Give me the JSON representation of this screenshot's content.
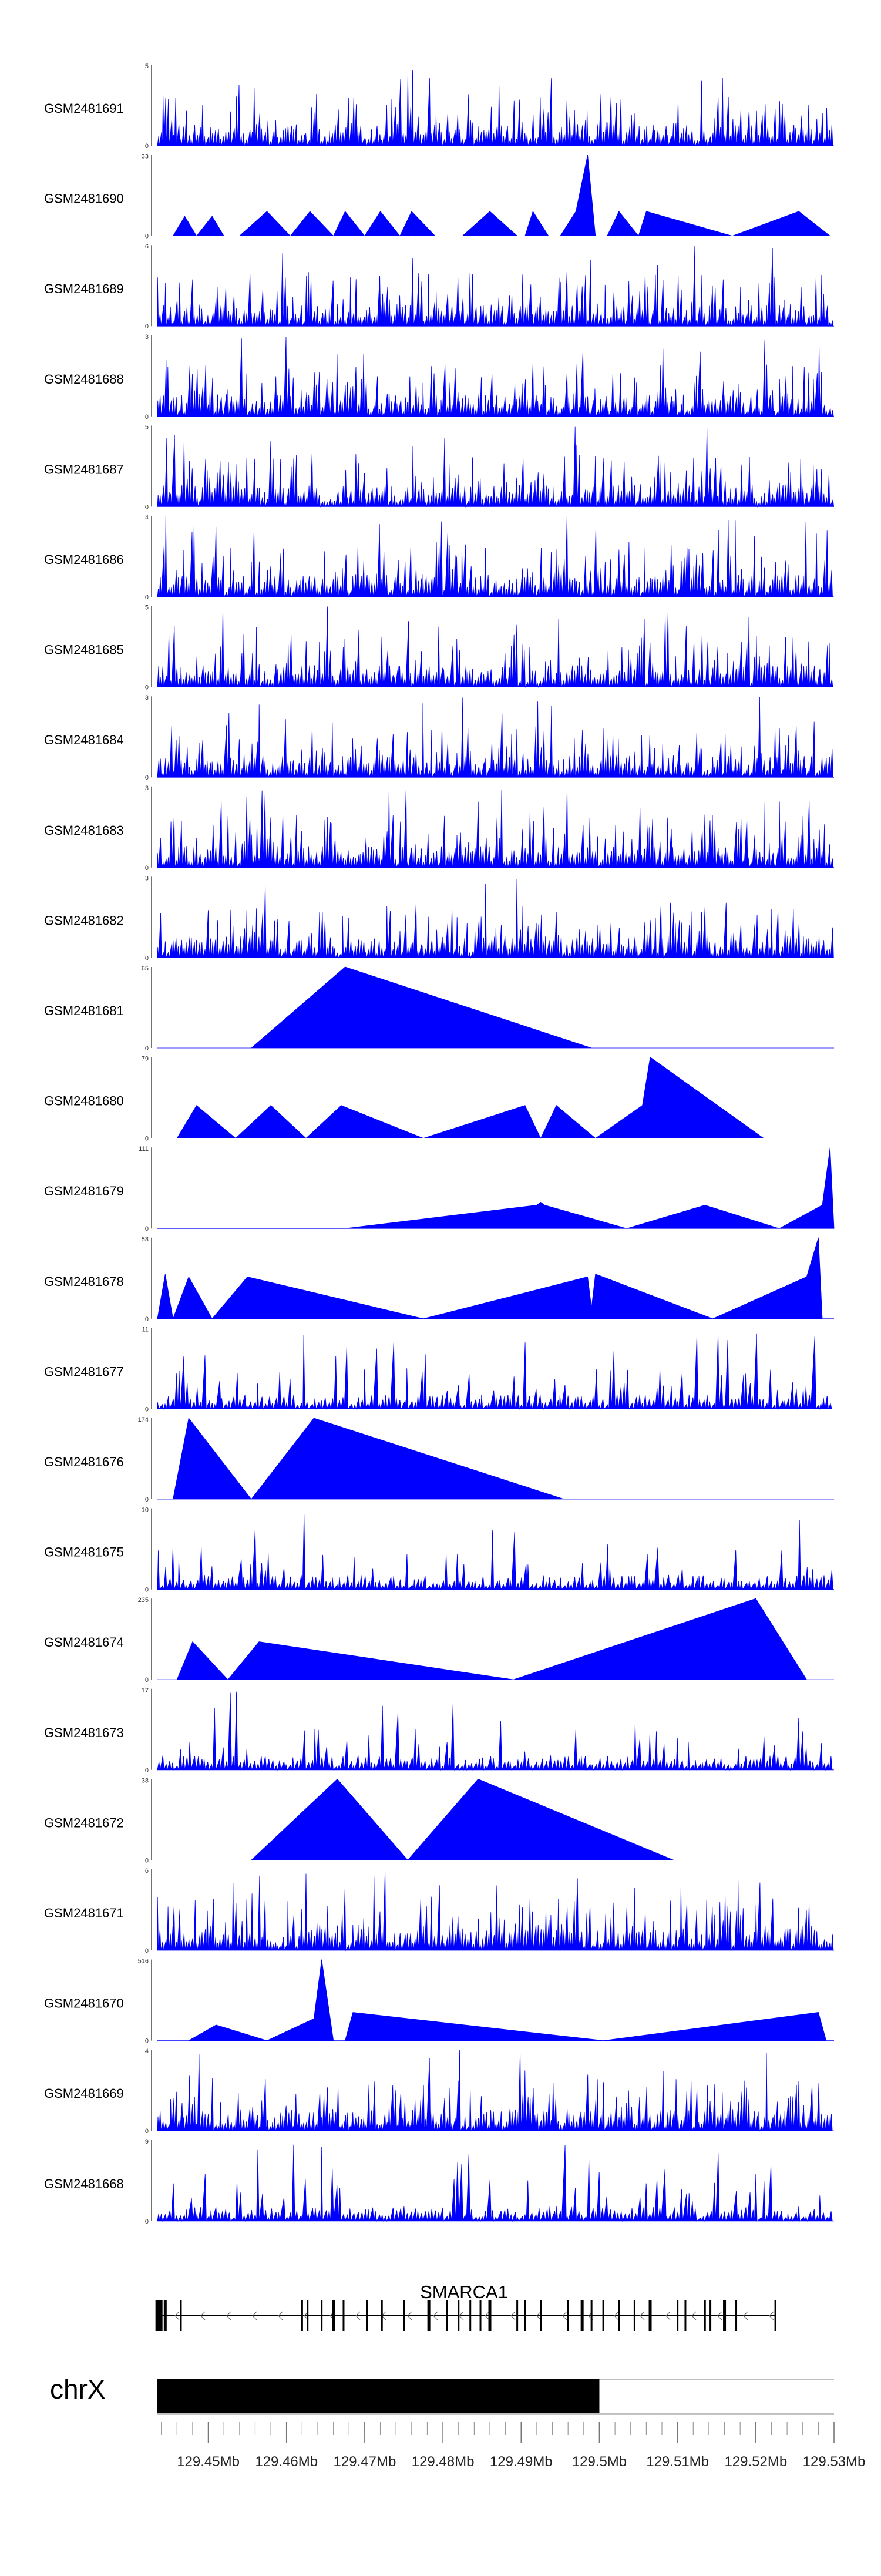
{
  "chart_data": {
    "type": "area",
    "title": "",
    "xlabel": "",
    "xlim": [
      129.4435,
      129.53
    ],
    "x_unit": "Mb",
    "track_fill": "#0000ff",
    "tracks": [
      {
        "name": "GSM2481691",
        "ymax": 5,
        "style": "dense",
        "seed": 91
      },
      {
        "name": "GSM2481690",
        "ymax": 33,
        "style": "peaks",
        "points": [
          [
            129.4435,
            0
          ],
          [
            129.4455,
            0
          ],
          [
            129.447,
            8
          ],
          [
            129.4485,
            0
          ],
          [
            129.4505,
            8
          ],
          [
            129.452,
            0
          ],
          [
            129.454,
            0
          ],
          [
            129.4575,
            10
          ],
          [
            129.4605,
            0
          ],
          [
            129.463,
            10
          ],
          [
            129.466,
            0
          ],
          [
            129.4675,
            10
          ],
          [
            129.47,
            0
          ],
          [
            129.472,
            10
          ],
          [
            129.4745,
            0
          ],
          [
            129.476,
            10
          ],
          [
            129.479,
            0
          ],
          [
            129.4825,
            0
          ],
          [
            129.486,
            10
          ],
          [
            129.4895,
            0
          ],
          [
            129.4905,
            0
          ],
          [
            129.4915,
            10
          ],
          [
            129.4935,
            0
          ],
          [
            129.495,
            0
          ],
          [
            129.497,
            10
          ],
          [
            129.4985,
            33
          ],
          [
            129.4995,
            0
          ],
          [
            129.501,
            0
          ],
          [
            129.5025,
            10
          ],
          [
            129.505,
            0
          ],
          [
            129.506,
            10
          ],
          [
            129.517,
            0
          ],
          [
            129.5255,
            10
          ],
          [
            129.5295,
            0
          ]
        ]
      },
      {
        "name": "GSM2481689",
        "ymax": 6,
        "style": "dense",
        "seed": 89
      },
      {
        "name": "GSM2481688",
        "ymax": 3,
        "style": "dense",
        "seed": 88
      },
      {
        "name": "GSM2481687",
        "ymax": 5,
        "style": "dense",
        "seed": 87
      },
      {
        "name": "GSM2481686",
        "ymax": 4,
        "style": "dense",
        "seed": 86
      },
      {
        "name": "GSM2481685",
        "ymax": 5,
        "style": "dense",
        "seed": 85
      },
      {
        "name": "GSM2481684",
        "ymax": 3,
        "style": "dense",
        "seed": 84
      },
      {
        "name": "GSM2481683",
        "ymax": 3,
        "style": "dense",
        "seed": 83
      },
      {
        "name": "GSM2481682",
        "ymax": 3,
        "style": "dense",
        "seed": 82
      },
      {
        "name": "GSM2481681",
        "ymax": 65,
        "style": "peaks",
        "points": [
          [
            129.4435,
            0
          ],
          [
            129.4555,
            0
          ],
          [
            129.4675,
            65
          ],
          [
            129.499,
            0
          ],
          [
            129.53,
            0
          ]
        ]
      },
      {
        "name": "GSM2481680",
        "ymax": 79,
        "style": "peaks",
        "points": [
          [
            129.4435,
            0
          ],
          [
            129.446,
            0
          ],
          [
            129.4485,
            32
          ],
          [
            129.4535,
            0
          ],
          [
            129.458,
            32
          ],
          [
            129.4625,
            0
          ],
          [
            129.467,
            32
          ],
          [
            129.4775,
            0
          ],
          [
            129.4905,
            32
          ],
          [
            129.4925,
            0
          ],
          [
            129.4945,
            32
          ],
          [
            129.4995,
            0
          ],
          [
            129.5055,
            32
          ],
          [
            129.5065,
            79
          ],
          [
            129.521,
            0
          ],
          [
            129.53,
            0
          ]
        ]
      },
      {
        "name": "GSM2481679",
        "ymax": 111,
        "style": "peaks",
        "points": [
          [
            129.4435,
            0
          ],
          [
            129.4675,
            0
          ],
          [
            129.492,
            32
          ],
          [
            129.4925,
            36
          ],
          [
            129.493,
            32
          ],
          [
            129.5035,
            0
          ],
          [
            129.5135,
            32
          ],
          [
            129.523,
            0
          ],
          [
            129.5285,
            32
          ],
          [
            129.5295,
            111
          ],
          [
            129.53,
            0
          ]
        ]
      },
      {
        "name": "GSM2481678",
        "ymax": 58,
        "style": "peaks",
        "points": [
          [
            129.4435,
            0
          ],
          [
            129.4445,
            32
          ],
          [
            129.4455,
            0
          ],
          [
            129.4475,
            30
          ],
          [
            129.4505,
            0
          ],
          [
            129.455,
            30
          ],
          [
            129.4775,
            0
          ],
          [
            129.4985,
            30
          ],
          [
            129.499,
            8
          ],
          [
            129.4995,
            32
          ],
          [
            129.5145,
            0
          ],
          [
            129.5265,
            30
          ],
          [
            129.528,
            58
          ],
          [
            129.5285,
            0
          ],
          [
            129.53,
            0
          ]
        ]
      },
      {
        "name": "GSM2481677",
        "ymax": 11,
        "style": "spiky",
        "seed": 77
      },
      {
        "name": "GSM2481676",
        "ymax": 174,
        "style": "peaks",
        "points": [
          [
            129.4435,
            0
          ],
          [
            129.4455,
            0
          ],
          [
            129.4475,
            174
          ],
          [
            129.4555,
            0
          ],
          [
            129.4635,
            174
          ],
          [
            129.4955,
            0
          ],
          [
            129.53,
            0
          ]
        ]
      },
      {
        "name": "GSM2481675",
        "ymax": 10,
        "style": "spiky",
        "seed": 75
      },
      {
        "name": "GSM2481674",
        "ymax": 235,
        "style": "peaks",
        "points": [
          [
            129.4435,
            0
          ],
          [
            129.446,
            0
          ],
          [
            129.448,
            110
          ],
          [
            129.4525,
            0
          ],
          [
            129.4565,
            110
          ],
          [
            129.489,
            0
          ],
          [
            129.52,
            235
          ],
          [
            129.5265,
            0
          ],
          [
            129.53,
            0
          ]
        ]
      },
      {
        "name": "GSM2481673",
        "ymax": 17,
        "style": "spiky",
        "seed": 73
      },
      {
        "name": "GSM2481672",
        "ymax": 38,
        "style": "peaks",
        "points": [
          [
            129.4435,
            0
          ],
          [
            129.4555,
            0
          ],
          [
            129.4665,
            38
          ],
          [
            129.4755,
            0
          ],
          [
            129.4845,
            38
          ],
          [
            129.5095,
            0
          ],
          [
            129.53,
            0
          ]
        ]
      },
      {
        "name": "GSM2481671",
        "ymax": 6,
        "style": "dense",
        "seed": 71
      },
      {
        "name": "GSM2481670",
        "ymax": 516,
        "style": "peaks",
        "points": [
          [
            129.4435,
            0
          ],
          [
            129.4475,
            0
          ],
          [
            129.451,
            100
          ],
          [
            129.4575,
            0
          ],
          [
            129.4635,
            140
          ],
          [
            129.4645,
            516
          ],
          [
            129.466,
            0
          ],
          [
            129.4675,
            0
          ],
          [
            129.4685,
            180
          ],
          [
            129.5005,
            0
          ],
          [
            129.528,
            180
          ],
          [
            129.529,
            0
          ],
          [
            129.53,
            0
          ]
        ]
      },
      {
        "name": "GSM2481669",
        "ymax": 4,
        "style": "dense",
        "seed": 69
      },
      {
        "name": "GSM2481668",
        "ymax": 9,
        "style": "spiky",
        "seed": 68
      }
    ],
    "gene_track": {
      "name": "SMARCA1",
      "strand": "-",
      "start": 129.4435,
      "end": 129.5225,
      "exons": [
        129.4437,
        129.4445,
        129.4465,
        129.462,
        129.4627,
        129.4645,
        129.466,
        129.4673,
        129.4703,
        129.4722,
        129.475,
        129.4782,
        129.4805,
        129.482,
        129.4835,
        129.4848,
        129.486,
        129.4895,
        129.4905,
        129.4925,
        129.496,
        129.4978,
        129.499,
        129.5005,
        129.5025,
        129.5045,
        129.5065,
        129.51,
        129.511,
        129.5135,
        129.5142,
        129.516,
        129.5175,
        129.5225
      ]
    },
    "ideogram": {
      "chromosome": "chrX",
      "filled_start": 129.4435,
      "filled_end": 129.5
    },
    "axis": {
      "tick_labels": [
        "129.45Mb",
        "129.46Mb",
        "129.47Mb",
        "129.48Mb",
        "129.49Mb",
        "129.5Mb",
        "129.51Mb",
        "129.52Mb",
        "129.53Mb"
      ],
      "tick_values": [
        129.45,
        129.46,
        129.47,
        129.48,
        129.49,
        129.5,
        129.51,
        129.52,
        129.53
      ],
      "minor_step": 0.002
    }
  }
}
